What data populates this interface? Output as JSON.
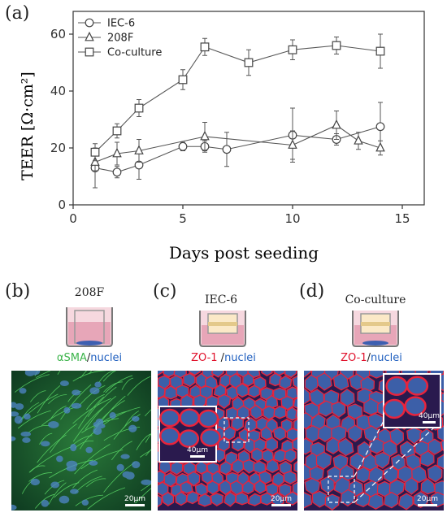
{
  "panel_labels": {
    "a": "(a)",
    "b": "(b)",
    "c": "(c)",
    "d": "(d)"
  },
  "chart_data": {
    "type": "line",
    "title": "",
    "xlabel": "Days post seeding",
    "ylabel": "TEER [Ω·cm²]",
    "xlim": [
      0,
      16
    ],
    "ylim": [
      0,
      68
    ],
    "xticks": [
      0,
      5,
      10,
      15
    ],
    "yticks": [
      0,
      20,
      40,
      60
    ],
    "grid": false,
    "legend_position": "top-left",
    "series": [
      {
        "name": "IEC-6",
        "marker": "circle",
        "x": [
          1,
          2,
          3,
          5,
          6,
          7,
          10,
          12,
          14
        ],
        "y": [
          13,
          11.5,
          14,
          20.5,
          20.5,
          19.5,
          24.5,
          23,
          27.5
        ],
        "err": [
          7,
          2,
          5,
          1.5,
          2,
          6,
          9.5,
          2,
          8.5
        ]
      },
      {
        "name": "208F",
        "marker": "triangle",
        "x": [
          1,
          2,
          3,
          6,
          10,
          12,
          13,
          14
        ],
        "y": [
          15,
          18,
          19,
          24,
          21,
          28,
          22.5,
          20
        ],
        "err": [
          3,
          4,
          4,
          5,
          5,
          5,
          3,
          2.5
        ]
      },
      {
        "name": "Co-culture",
        "marker": "square",
        "x": [
          1,
          2,
          3,
          5,
          6,
          8,
          10,
          12,
          14
        ],
        "y": [
          18.5,
          26,
          34,
          44,
          55.5,
          50,
          54.5,
          56,
          54
        ],
        "err": [
          3,
          2.5,
          3,
          3.5,
          3,
          4.5,
          3.5,
          3,
          6
        ]
      }
    ]
  },
  "panels": {
    "b": {
      "culture": "208F",
      "stain_a": "αSMA",
      "sep": "/",
      "stain_b": "nuclei",
      "scale": "20μm"
    },
    "c": {
      "culture": "IEC-6",
      "stain_a": "ZO-1",
      "sep": " /",
      "stain_b": "nuclei",
      "scale": "20μm",
      "inset_scale": "40μm"
    },
    "d": {
      "culture": "Co-culture",
      "stain_a": "ZO-1",
      "sep": "/",
      "stain_b": "nuclei",
      "scale": "20μm",
      "inset_scale": "40μm"
    }
  },
  "colors": {
    "stain_green": "#3cb44b",
    "stain_red": "#e0102a",
    "stain_blue": "#1f5fbf",
    "line": "#555555"
  }
}
